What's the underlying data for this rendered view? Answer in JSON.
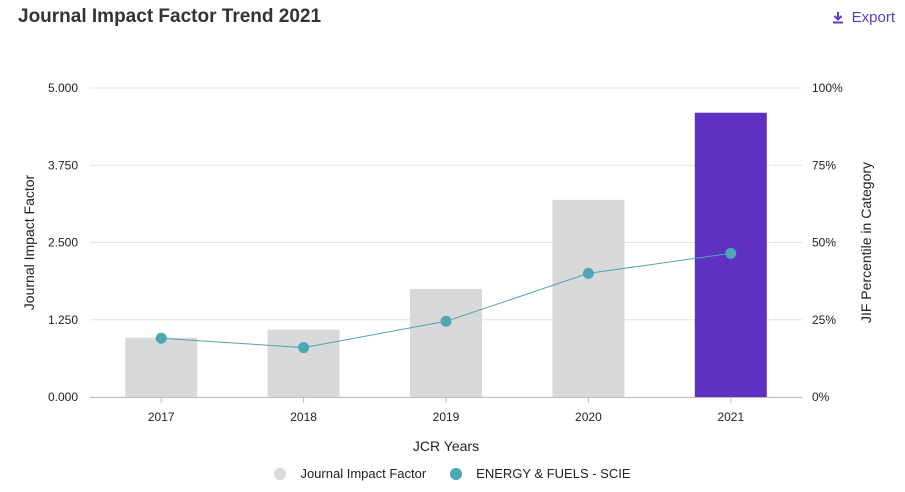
{
  "header": {
    "title": "Journal Impact Factor Trend 2021",
    "export_label": "Export"
  },
  "colors": {
    "bar": "#d8d8d8",
    "highlight": "#5f31c2",
    "line": "#4da6b3",
    "grid": "#e4e4e4",
    "accent": "#5b3cc4"
  },
  "chart_data": {
    "type": "bar+line",
    "title": "Journal Impact Factor Trend 2021",
    "categories": [
      "2017",
      "2018",
      "2019",
      "2020",
      "2021"
    ],
    "series": [
      {
        "name": "Journal Impact Factor",
        "type": "bar",
        "axis": "left",
        "values": [
          0.96,
          1.09,
          1.75,
          3.19,
          4.6
        ],
        "highlight_index": 4
      },
      {
        "name": "ENERGY & FUELS - SCIE",
        "type": "line",
        "axis": "right",
        "values": [
          19,
          16,
          24.5,
          40,
          46.5
        ]
      }
    ],
    "xlabel": "JCR Years",
    "ylabel": "Journal Impact Factor",
    "y2label": "JIF Percentile in Category",
    "ylim": [
      0,
      5
    ],
    "y2lim": [
      0,
      100
    ],
    "yticks": [
      "0.000",
      "1.250",
      "2.500",
      "3.750",
      "5.000"
    ],
    "y2ticks": [
      "0%",
      "25%",
      "50%",
      "75%",
      "100%"
    ],
    "legend_position": "bottom"
  }
}
